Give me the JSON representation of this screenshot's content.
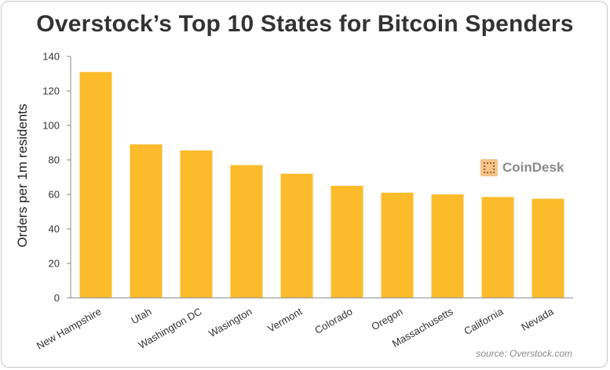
{
  "title": "Overstock’s Top 10 States for Bitcoin Spenders",
  "source": "source: Overstock.com",
  "logo": {
    "text": "CoinDesk",
    "icon": "coindesk-logo-icon",
    "color": "#f5c48a"
  },
  "colors": {
    "bar": "#fbbb2b",
    "axis": "#888888"
  },
  "chart_data": {
    "type": "bar",
    "title": "Overstock’s Top 10 States for Bitcoin Spenders",
    "xlabel": "",
    "ylabel": "Orders per 1m residents",
    "ylim": [
      0,
      140
    ],
    "yticks": [
      0,
      20,
      40,
      60,
      80,
      100,
      120,
      140
    ],
    "grid": false,
    "categories": [
      "New Hampshire",
      "Utah",
      "Washington DC",
      "Wasington",
      "Vermont",
      "Colorado",
      "Oregon",
      "Massachusetts",
      "California",
      "Nevada"
    ],
    "values": [
      131,
      89,
      85.5,
      77,
      72,
      65,
      61,
      60,
      58.5,
      57.5
    ]
  }
}
